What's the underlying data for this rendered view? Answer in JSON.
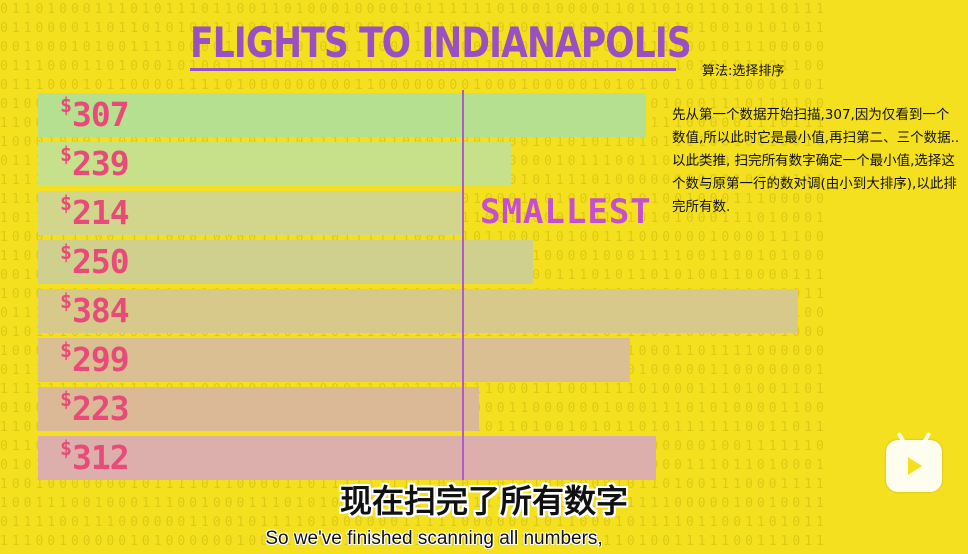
{
  "header": {
    "title": "FLIGHTS TO INDIANAPOLIS",
    "algorithm_label": "算法:选择排序"
  },
  "description": "先从第一个数据开始扫描,307,因为仅看到一个数值,所以此时它是最小值,再扫第二、三个数据..以此类推, 扫完所有数字确定一个最小值,选择这个数与原第一行的数对调(由小到大排序),以此排完所有数.",
  "chart_data": {
    "type": "bar",
    "orientation": "horizontal",
    "currency": "$",
    "categories": [
      "307",
      "239",
      "214",
      "250",
      "384",
      "299",
      "223",
      "312"
    ],
    "values": [
      307,
      239,
      214,
      250,
      384,
      299,
      223,
      312
    ],
    "xlim": [
      0,
      384
    ],
    "bar_colors": [
      "#b4e090",
      "#c6e18a",
      "#d2d68c",
      "#cfd08e",
      "#d6c98a",
      "#d9bf91",
      "#dbb996",
      "#dcaeac"
    ]
  },
  "annotation": {
    "label": "SMALLEST"
  },
  "subtitles": {
    "chinese": "现在扫完了所有数字",
    "english": "So we've finished scanning all numbers,"
  },
  "watermark": {
    "icon": "bilibili-tv-icon"
  }
}
